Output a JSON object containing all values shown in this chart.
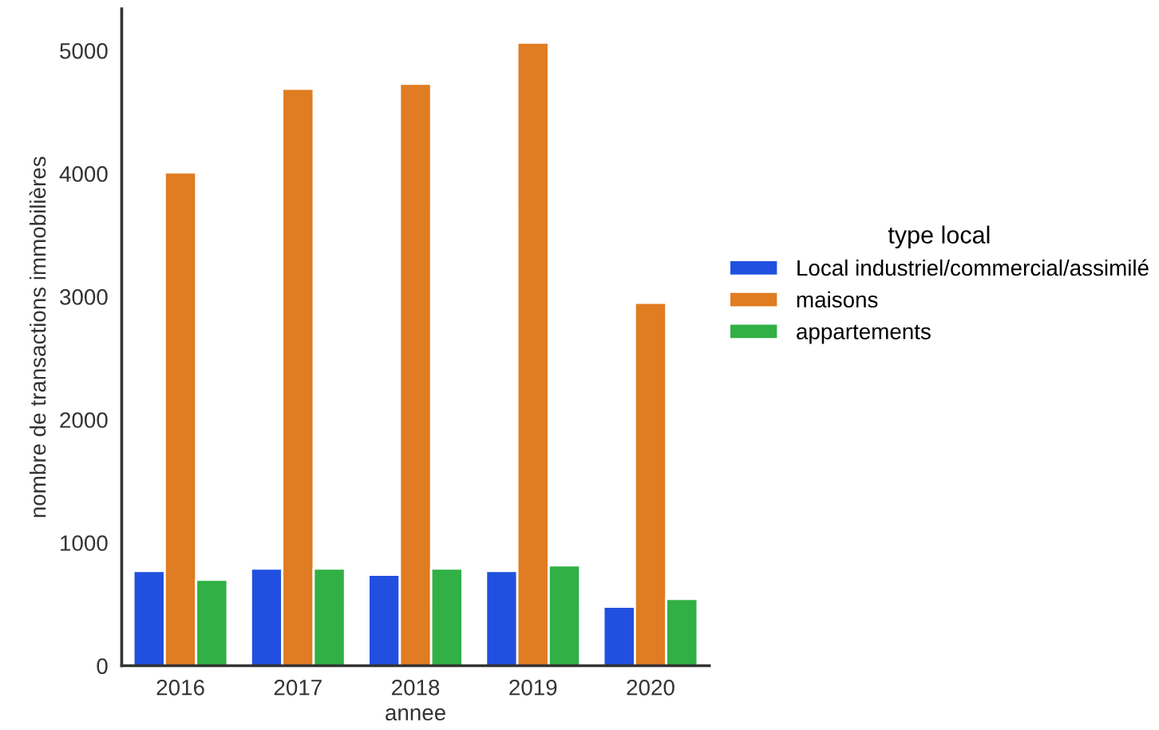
{
  "chart_data": {
    "type": "bar",
    "xlabel": "annee",
    "ylabel": "nombre de transactions immobilières",
    "legend_title": "type local",
    "categories": [
      "2016",
      "2017",
      "2018",
      "2019",
      "2020"
    ],
    "series": [
      {
        "name": "Local industriel/commercial/assimilé",
        "color": "#2150e0",
        "values": [
          770,
          790,
          740,
          770,
          480
        ]
      },
      {
        "name": "maisons",
        "color": "#e07c22",
        "values": [
          4010,
          4690,
          4730,
          5065,
          2950
        ]
      },
      {
        "name": "appartements",
        "color": "#30b045",
        "values": [
          700,
          790,
          790,
          816,
          544
        ]
      }
    ],
    "ylim": [
      0,
      5340
    ],
    "yticks": [
      0,
      1000,
      2000,
      3000,
      4000,
      5000
    ],
    "grid": false,
    "legend": "right"
  }
}
